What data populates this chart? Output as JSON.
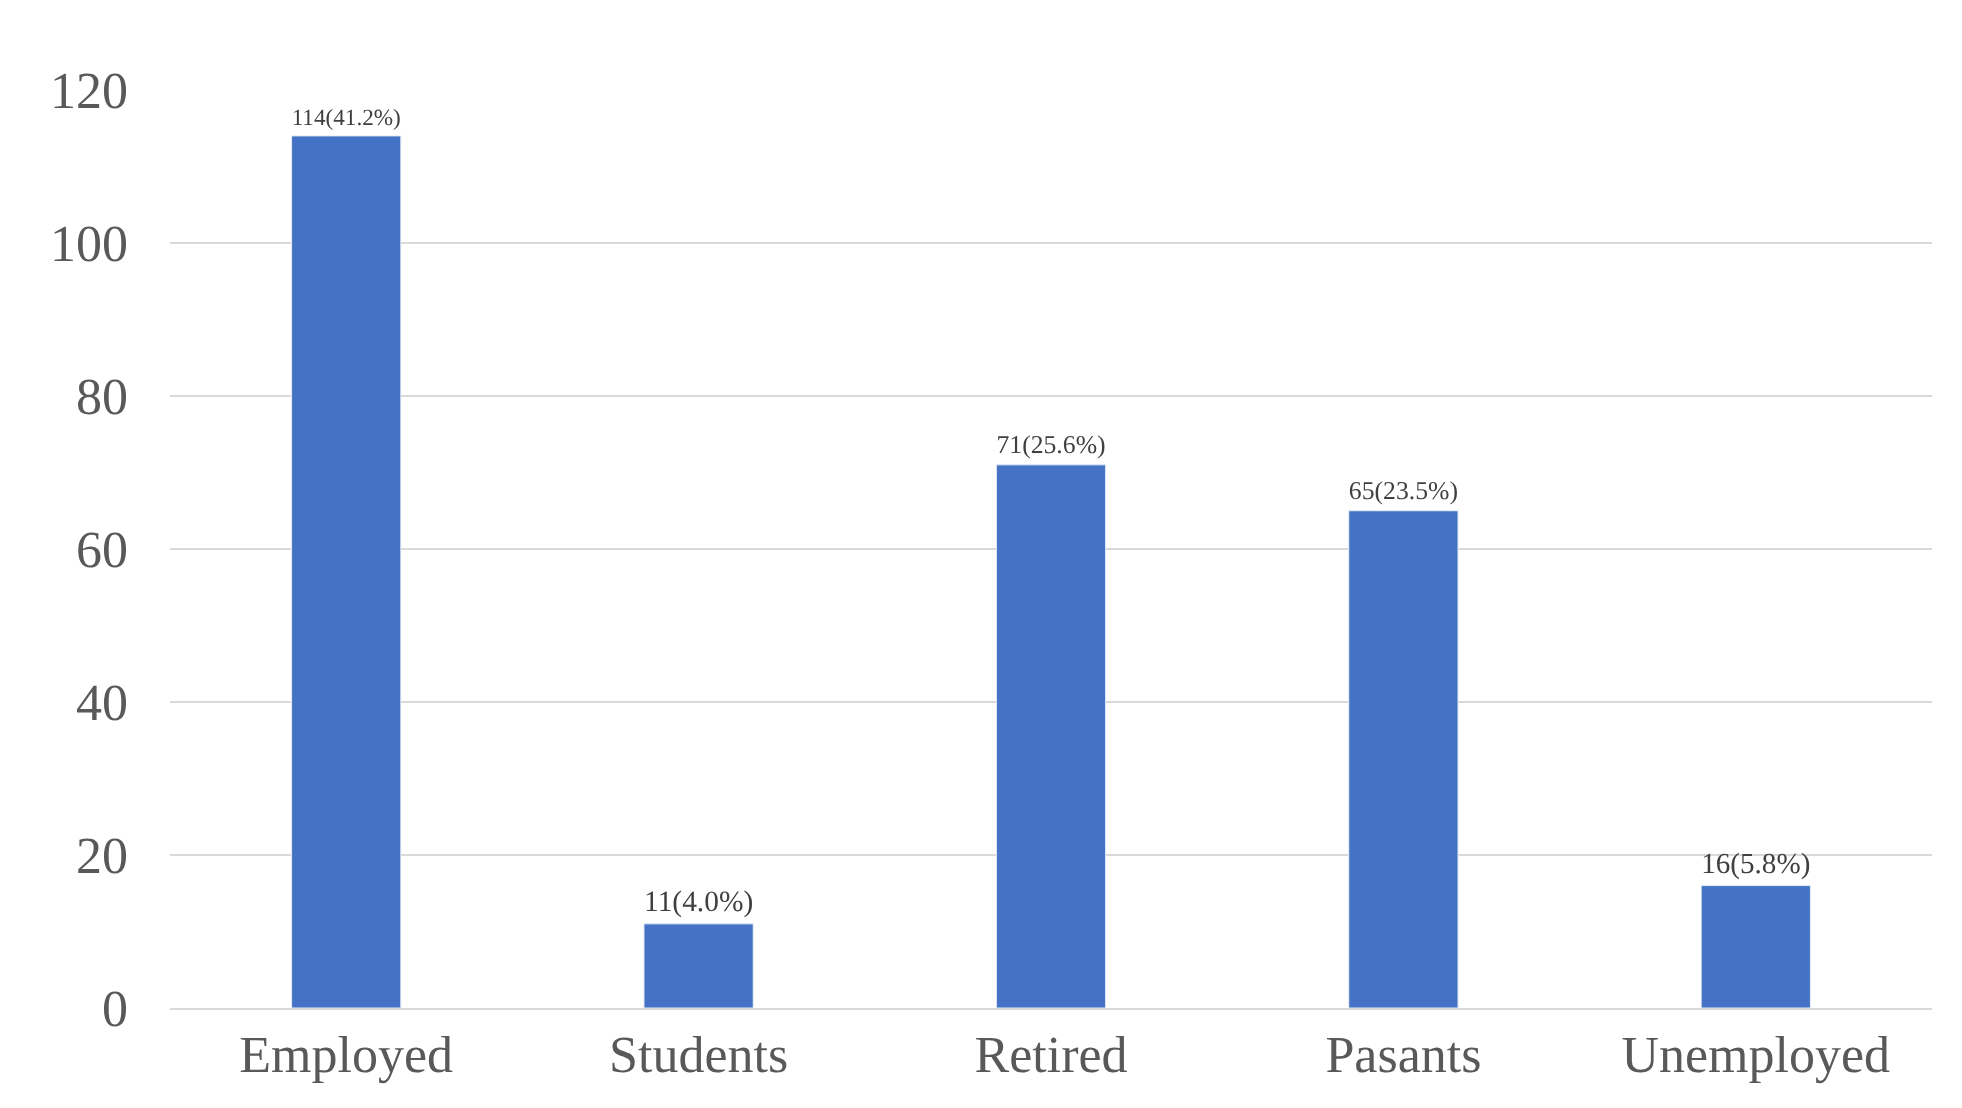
{
  "chart_data": {
    "type": "bar",
    "categories": [
      "Employed",
      "Students",
      "Retired",
      "Pasants",
      "Unemployed"
    ],
    "values": [
      114,
      11,
      71,
      65,
      16
    ],
    "value_labels": [
      "114(41.2%)",
      "11(4.0%)",
      "71(25.6%)",
      "65(23.5%)",
      "16(5.8%)"
    ],
    "color": "#4472c4",
    "ylim": [
      0,
      120
    ],
    "yticks": [
      0,
      20,
      40,
      60,
      80,
      100,
      120
    ],
    "grid": "y",
    "legend": false
  }
}
